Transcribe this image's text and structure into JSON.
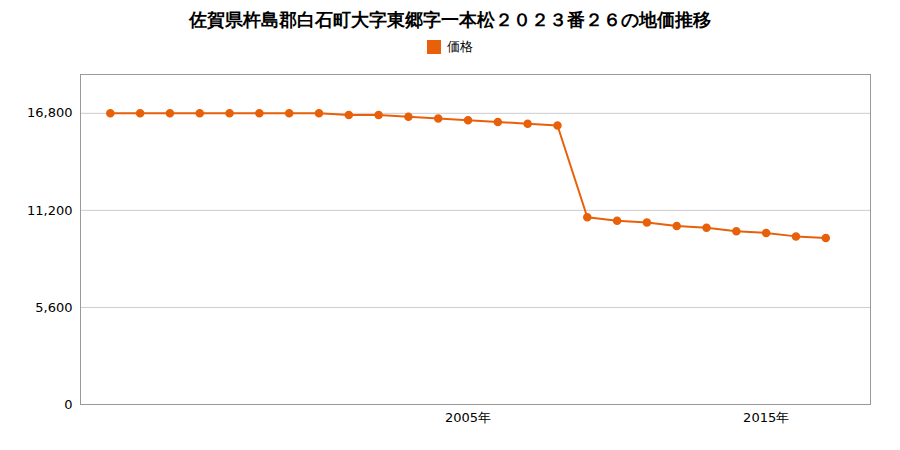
{
  "chart_data": {
    "type": "line",
    "title": "佐賀県杵島郡白石町大字東郷字一本松２０２３番２６の地価推移",
    "x": [
      1993,
      1994,
      1995,
      1996,
      1997,
      1998,
      1999,
      2000,
      2001,
      2002,
      2003,
      2004,
      2005,
      2006,
      2007,
      2008,
      2009,
      2010,
      2011,
      2012,
      2013,
      2014,
      2015,
      2016,
      2017
    ],
    "series": [
      {
        "name": "価格",
        "color": "#e8600a",
        "marker": "circle",
        "values": [
          16800,
          16800,
          16800,
          16800,
          16800,
          16800,
          16800,
          16800,
          16700,
          16700,
          16600,
          16500,
          16400,
          16300,
          16200,
          16100,
          10800,
          10600,
          10500,
          10300,
          10200,
          10000,
          9900,
          9700,
          9600
        ]
      }
    ],
    "xlim": [
      1992.0,
      2018.5
    ],
    "xticks": [
      {
        "value": 2005,
        "label": "2005年"
      },
      {
        "value": 2015,
        "label": "2015年"
      }
    ],
    "ylim": [
      0,
      19040
    ],
    "yticks": [
      0,
      {
        "value": 5600,
        "label": "5,600"
      },
      {
        "value": 11200,
        "label": "11,200"
      },
      {
        "value": 16800,
        "label": "16,800"
      }
    ],
    "grid": true,
    "legend": "top"
  }
}
